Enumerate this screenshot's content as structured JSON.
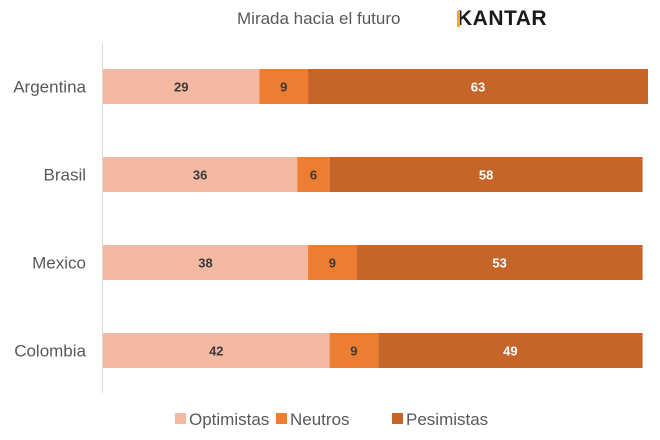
{
  "header": {
    "title": "Mirada hacia el futuro",
    "logo": "KANTAR"
  },
  "chart_data": {
    "type": "bar",
    "orientation": "horizontal",
    "stacked": true,
    "title": "Mirada hacia el futuro",
    "xlabel": "",
    "ylabel": "",
    "xlim": [
      0,
      101
    ],
    "grid": false,
    "legend_position": "bottom",
    "categories": [
      "Argentina",
      "Brasil",
      "Mexico",
      "Colombia"
    ],
    "series": [
      {
        "name": "Optimistas",
        "color": "#f4b9a2",
        "label_color": "#3a3a3a",
        "values": [
          29,
          36,
          38,
          42
        ]
      },
      {
        "name": "Neutros",
        "color": "#ed7d31",
        "label_color": "#3a3a3a",
        "values": [
          9,
          6,
          9,
          9
        ]
      },
      {
        "name": "Pesimistas",
        "color": "#c5652a",
        "label_color": "#ffffff",
        "values": [
          63,
          58,
          53,
          49
        ]
      }
    ]
  }
}
